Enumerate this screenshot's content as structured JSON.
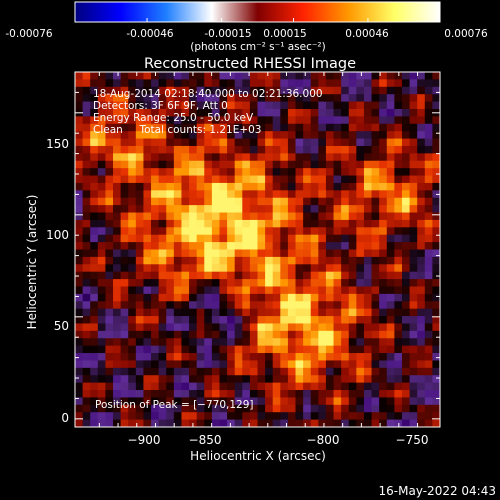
{
  "colorbar": {
    "tick_labels": [
      "-0.00076",
      "-0.00046",
      "-0.00015",
      "0.00015",
      "0.00046",
      "0.00076"
    ],
    "tick_values": [
      -0.00076,
      -0.00046,
      -0.00015,
      0.00015,
      0.00046,
      0.00076
    ],
    "range": [
      -0.00076,
      0.00076
    ],
    "units": "(photons cm⁻² s⁻¹ asec⁻²)",
    "colors": [
      "#00007f",
      "#0000ff",
      "#1f7fff",
      "#ffffff",
      "#7f0000",
      "#ff2200",
      "#ff9900",
      "#ffff66",
      "#ffffff"
    ]
  },
  "chart_data": {
    "type": "heatmap",
    "title": "Reconstructed RHESSI Image",
    "xlabel": "Heliocentric X (arcsec)",
    "ylabel": "Heliocentric Y (arcsec)",
    "xlim": [
      -938,
      -743
    ],
    "ylim": [
      -4,
      170
    ],
    "x_ticks": [
      -900,
      -850,
      -800,
      -750
    ],
    "x_tick_labels": [
      "−900",
      "−850",
      "−800",
      "−750"
    ],
    "y_ticks": [
      0,
      50,
      100,
      150
    ],
    "y_tick_labels": [
      "0",
      "50",
      "100",
      "150"
    ],
    "info_lines": [
      "18-Aug-2014 02:18:40.000 to 02:21:36.000",
      "Detectors: 3F 6F 9F, Att 0",
      "Energy Range: 25.0 - 50.0 keV",
      "Clean     Total counts: 1.21E+03"
    ],
    "peak_label": "Position of Peak = [−770,129]",
    "peak": {
      "x": -770,
      "y": 129
    }
  },
  "footer": {
    "timestamp": "16-May-2022 04:43"
  }
}
